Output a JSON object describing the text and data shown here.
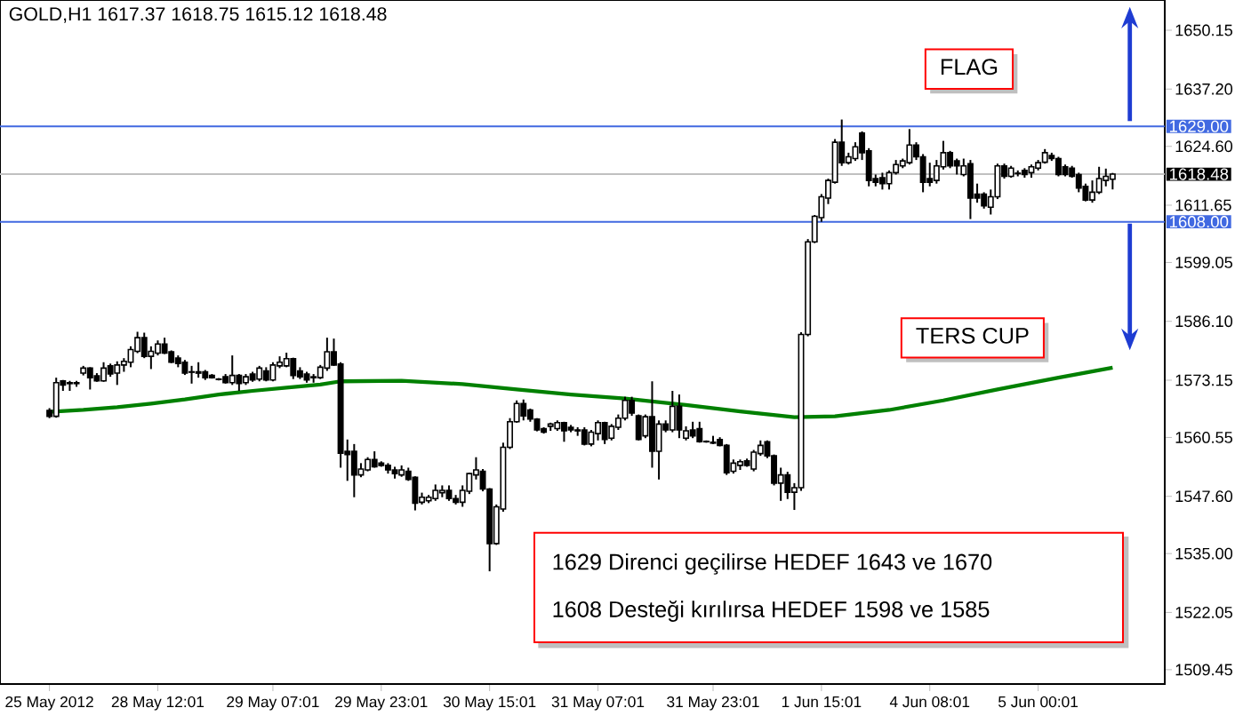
{
  "chart_data": {
    "type": "candlestick",
    "title": "GOLD,H1  1617.37 1618.75 1615.12 1618.48",
    "categories": [
      "25 May 2012",
      null,
      null,
      null,
      null,
      null,
      null,
      null,
      null,
      null,
      null,
      null,
      null,
      null,
      null,
      null,
      "28 May 12:01",
      null,
      null,
      null,
      null,
      null,
      null,
      null,
      null,
      null,
      null,
      null,
      null,
      null,
      null,
      null,
      null,
      "29 May 07:01",
      null,
      null,
      null,
      null,
      null,
      null,
      null,
      null,
      null,
      null,
      null,
      null,
      null,
      null,
      null,
      "29 May 23:01",
      null,
      null,
      null,
      null,
      null,
      null,
      null,
      null,
      null,
      null,
      null,
      null,
      null,
      null,
      null,
      "30 May 15:01",
      null,
      null,
      null,
      null,
      null,
      null,
      null,
      null,
      null,
      null,
      null,
      null,
      null,
      null,
      null,
      "31 May 07:01",
      null,
      null,
      null,
      null,
      null,
      null,
      null,
      null,
      null,
      null,
      null,
      null,
      null,
      null,
      null,
      null,
      "31 May 23:01",
      null,
      null,
      null,
      null,
      null,
      null,
      null,
      null,
      null,
      null,
      null,
      null,
      null,
      null,
      null,
      "1 Jun 15:01",
      null,
      null,
      null,
      null,
      null,
      null,
      null,
      null,
      null,
      null,
      null,
      null,
      null,
      null,
      null,
      "4 Jun 08:01",
      null,
      null,
      null,
      null,
      null,
      null,
      null,
      null,
      null,
      null,
      null,
      null,
      null,
      null,
      null,
      "5 Jun 00:01",
      null,
      null,
      null,
      null,
      null,
      null,
      null,
      null,
      null,
      null,
      null
    ],
    "ohlc": [
      [
        1566.5,
        1567.0,
        1564.8,
        1565.2
      ],
      [
        1565.2,
        1573.7,
        1564.9,
        1572.6
      ],
      [
        1573.0,
        1573.2,
        1570.8,
        1572.1
      ],
      [
        1572.6,
        1573.0,
        1570.8,
        1572.4
      ],
      [
        1572.4,
        1573.0,
        1571.7,
        1572.6
      ],
      [
        1574.7,
        1576.3,
        1574.2,
        1575.8
      ],
      [
        1575.8,
        1576.0,
        1571.1,
        1573.7
      ],
      [
        1574.1,
        1574.7,
        1572.8,
        1573.0
      ],
      [
        1573.0,
        1577.1,
        1572.8,
        1575.8
      ],
      [
        1576.3,
        1576.8,
        1573.9,
        1574.5
      ],
      [
        1574.7,
        1577.3,
        1572.1,
        1576.5
      ],
      [
        1576.5,
        1578.0,
        1575.0,
        1577.3
      ],
      [
        1577.1,
        1580.6,
        1576.0,
        1579.9
      ],
      [
        1579.5,
        1583.8,
        1579.1,
        1582.5
      ],
      [
        1582.5,
        1583.6,
        1578.0,
        1578.4
      ],
      [
        1578.4,
        1580.6,
        1575.6,
        1579.5
      ],
      [
        1579.1,
        1581.9,
        1578.6,
        1581.1
      ],
      [
        1581.1,
        1582.5,
        1578.9,
        1579.1
      ],
      [
        1579.4,
        1579.7,
        1576.9,
        1577.1
      ],
      [
        1578.0,
        1578.6,
        1576.0,
        1576.8
      ],
      [
        1577.1,
        1577.6,
        1574.3,
        1574.7
      ],
      [
        1575.0,
        1576.3,
        1572.4,
        1574.9
      ],
      [
        1575.0,
        1577.1,
        1573.7,
        1574.7
      ],
      [
        1575.0,
        1575.4,
        1573.2,
        1573.7
      ],
      [
        1574.2,
        1574.5,
        1573.5,
        1573.7
      ],
      [
        1573.4,
        1573.6,
        1573.1,
        1573.3
      ],
      [
        1573.9,
        1574.5,
        1572.4,
        1572.6
      ],
      [
        1572.6,
        1578.6,
        1572.1,
        1574.2
      ],
      [
        1574.2,
        1574.5,
        1570.8,
        1572.4
      ],
      [
        1572.6,
        1574.5,
        1572.1,
        1573.9
      ],
      [
        1574.5,
        1575.0,
        1572.8,
        1573.2
      ],
      [
        1573.4,
        1576.3,
        1572.9,
        1575.8
      ],
      [
        1575.2,
        1576.0,
        1572.9,
        1573.2
      ],
      [
        1573.2,
        1577.1,
        1572.9,
        1576.5
      ],
      [
        1576.3,
        1578.4,
        1575.8,
        1577.1
      ],
      [
        1576.3,
        1579.2,
        1576.0,
        1577.9
      ],
      [
        1577.9,
        1578.1,
        1573.4,
        1574.2
      ],
      [
        1575.2,
        1576.0,
        1573.4,
        1573.9
      ],
      [
        1574.5,
        1575.0,
        1572.6,
        1573.2
      ],
      [
        1573.9,
        1574.5,
        1572.6,
        1573.7
      ],
      [
        1573.7,
        1576.5,
        1573.4,
        1576.0
      ],
      [
        1575.8,
        1582.5,
        1575.2,
        1579.4
      ],
      [
        1579.4,
        1582.3,
        1576.3,
        1576.5
      ],
      [
        1576.7,
        1577.1,
        1553.9,
        1557.1
      ],
      [
        1557.5,
        1560.1,
        1551.0,
        1556.8
      ],
      [
        1557.5,
        1559.1,
        1547.4,
        1552.3
      ],
      [
        1552.3,
        1554.9,
        1551.8,
        1553.6
      ],
      [
        1553.4,
        1556.2,
        1553.1,
        1555.7
      ],
      [
        1555.7,
        1557.5,
        1553.9,
        1554.1
      ],
      [
        1554.9,
        1555.3,
        1554.1,
        1554.4
      ],
      [
        1554.4,
        1554.9,
        1552.6,
        1553.4
      ],
      [
        1553.4,
        1554.1,
        1551.5,
        1552.6
      ],
      [
        1552.3,
        1554.4,
        1551.9,
        1553.4
      ],
      [
        1553.1,
        1553.9,
        1551.0,
        1551.3
      ],
      [
        1551.8,
        1552.0,
        1544.5,
        1546.1
      ],
      [
        1546.3,
        1548.4,
        1545.8,
        1547.4
      ],
      [
        1546.6,
        1547.9,
        1546.1,
        1547.4
      ],
      [
        1547.1,
        1550.2,
        1546.6,
        1548.9
      ],
      [
        1548.4,
        1550.0,
        1547.4,
        1548.9
      ],
      [
        1548.9,
        1550.0,
        1546.6,
        1547.1
      ],
      [
        1547.1,
        1547.9,
        1545.8,
        1546.3
      ],
      [
        1546.3,
        1550.0,
        1545.3,
        1548.9
      ],
      [
        1548.7,
        1552.8,
        1548.1,
        1552.6
      ],
      [
        1552.3,
        1556.2,
        1551.3,
        1553.4
      ],
      [
        1553.1,
        1553.6,
        1548.7,
        1549.2
      ],
      [
        1549.2,
        1549.4,
        1531.1,
        1537.2
      ],
      [
        1537.2,
        1545.8,
        1536.9,
        1545.3
      ],
      [
        1544.8,
        1559.4,
        1544.2,
        1558.4
      ],
      [
        1558.4,
        1564.8,
        1558.0,
        1564.0
      ],
      [
        1564.0,
        1568.7,
        1563.8,
        1568.0
      ],
      [
        1568.0,
        1568.9,
        1564.3,
        1565.3
      ],
      [
        1566.6,
        1566.9,
        1564.0,
        1564.6
      ],
      [
        1564.6,
        1564.8,
        1561.9,
        1562.2
      ],
      [
        1562.5,
        1562.8,
        1561.4,
        1561.7
      ],
      [
        1563.0,
        1563.8,
        1562.0,
        1563.5
      ],
      [
        1562.5,
        1564.3,
        1562.0,
        1563.8
      ],
      [
        1563.8,
        1564.0,
        1559.6,
        1562.0
      ],
      [
        1562.8,
        1563.3,
        1561.7,
        1562.2
      ],
      [
        1562.2,
        1562.8,
        1560.9,
        1562.0
      ],
      [
        1562.2,
        1562.8,
        1558.8,
        1559.1
      ],
      [
        1559.1,
        1562.2,
        1558.6,
        1561.7
      ],
      [
        1561.4,
        1564.3,
        1559.9,
        1563.8
      ],
      [
        1563.8,
        1564.0,
        1559.1,
        1560.1
      ],
      [
        1560.4,
        1563.5,
        1559.9,
        1563.0
      ],
      [
        1562.8,
        1565.6,
        1562.2,
        1564.8
      ],
      [
        1564.8,
        1569.5,
        1564.3,
        1568.7
      ],
      [
        1568.7,
        1569.5,
        1565.3,
        1565.9
      ],
      [
        1565.3,
        1565.6,
        1559.9,
        1560.1
      ],
      [
        1560.9,
        1565.6,
        1560.4,
        1565.1
      ],
      [
        1565.1,
        1572.9,
        1553.9,
        1557.5
      ],
      [
        1557.5,
        1564.3,
        1551.3,
        1563.5
      ],
      [
        1563.5,
        1564.3,
        1561.7,
        1562.2
      ],
      [
        1562.2,
        1570.8,
        1561.7,
        1567.4
      ],
      [
        1567.4,
        1570.0,
        1560.4,
        1562.2
      ],
      [
        1560.4,
        1563.0,
        1559.9,
        1562.0
      ],
      [
        1562.2,
        1564.0,
        1560.4,
        1560.9
      ],
      [
        1562.5,
        1564.0,
        1559.4,
        1559.6
      ],
      [
        1559.7,
        1559.9,
        1559.4,
        1559.6
      ],
      [
        1559.5,
        1560.9,
        1559.1,
        1559.3
      ],
      [
        1560.1,
        1560.6,
        1558.6,
        1558.8
      ],
      [
        1558.8,
        1559.1,
        1552.3,
        1552.8
      ],
      [
        1553.1,
        1555.7,
        1552.6,
        1554.9
      ],
      [
        1554.4,
        1555.7,
        1553.4,
        1555.2
      ],
      [
        1555.4,
        1555.9,
        1554.1,
        1554.4
      ],
      [
        1553.6,
        1557.8,
        1553.1,
        1557.3
      ],
      [
        1557.0,
        1559.9,
        1556.5,
        1558.8
      ],
      [
        1559.6,
        1559.9,
        1556.0,
        1556.5
      ],
      [
        1556.5,
        1556.8,
        1550.0,
        1550.5
      ],
      [
        1550.5,
        1553.9,
        1546.6,
        1552.3
      ],
      [
        1552.3,
        1553.0,
        1547.0,
        1548.5
      ],
      [
        1548.5,
        1550.5,
        1544.6,
        1549.5
      ],
      [
        1549.5,
        1583.7,
        1548.8,
        1583.2
      ],
      [
        1583.2,
        1604.2,
        1582.8,
        1603.6
      ],
      [
        1603.6,
        1609.5,
        1603.3,
        1609.2
      ],
      [
        1608.9,
        1614.1,
        1608.0,
        1613.5
      ],
      [
        1613.2,
        1617.5,
        1611.9,
        1617.1
      ],
      [
        1616.7,
        1626.2,
        1616.4,
        1625.5
      ],
      [
        1625.5,
        1630.5,
        1620.3,
        1621.0
      ],
      [
        1621.0,
        1623.2,
        1620.6,
        1622.3
      ],
      [
        1621.9,
        1625.5,
        1621.4,
        1624.5
      ],
      [
        1627.5,
        1627.9,
        1621.6,
        1623.2
      ],
      [
        1623.6,
        1624.2,
        1615.8,
        1617.1
      ],
      [
        1617.5,
        1618.4,
        1615.8,
        1616.7
      ],
      [
        1617.7,
        1618.8,
        1615.1,
        1616.4
      ],
      [
        1616.4,
        1619.3,
        1615.1,
        1618.8
      ],
      [
        1618.8,
        1621.6,
        1618.4,
        1620.6
      ],
      [
        1620.3,
        1621.9,
        1619.8,
        1621.4
      ],
      [
        1621.0,
        1628.4,
        1620.6,
        1624.9
      ],
      [
        1624.9,
        1625.5,
        1621.6,
        1622.3
      ],
      [
        1622.3,
        1622.9,
        1614.5,
        1616.7
      ],
      [
        1617.5,
        1621.0,
        1615.8,
        1616.7
      ],
      [
        1617.1,
        1621.6,
        1616.4,
        1620.3
      ],
      [
        1620.1,
        1625.8,
        1619.5,
        1623.2
      ],
      [
        1623.2,
        1623.6,
        1619.8,
        1620.3
      ],
      [
        1621.4,
        1621.9,
        1618.4,
        1620.3
      ],
      [
        1618.4,
        1621.9,
        1618.0,
        1620.3
      ],
      [
        1620.8,
        1621.6,
        1608.6,
        1613.2
      ],
      [
        1614.1,
        1616.4,
        1612.2,
        1613.2
      ],
      [
        1614.1,
        1614.5,
        1610.9,
        1611.5
      ],
      [
        1611.2,
        1615.1,
        1609.6,
        1613.5
      ],
      [
        1613.5,
        1620.8,
        1613.0,
        1620.3
      ],
      [
        1620.3,
        1620.8,
        1617.5,
        1618.0
      ],
      [
        1618.0,
        1620.3,
        1617.7,
        1619.8
      ],
      [
        1618.7,
        1619.3,
        1618.0,
        1618.6
      ],
      [
        1619.3,
        1619.8,
        1617.7,
        1618.4
      ],
      [
        1618.8,
        1620.6,
        1617.7,
        1620.1
      ],
      [
        1619.8,
        1621.6,
        1619.3,
        1621.0
      ],
      [
        1621.1,
        1624.0,
        1620.8,
        1623.2
      ],
      [
        1622.6,
        1623.2,
        1621.4,
        1621.9
      ],
      [
        1621.9,
        1622.3,
        1618.0,
        1618.4
      ],
      [
        1620.1,
        1620.6,
        1618.0,
        1618.4
      ],
      [
        1619.8,
        1620.3,
        1617.7,
        1618.0
      ],
      [
        1618.4,
        1618.8,
        1614.5,
        1615.4
      ],
      [
        1615.8,
        1616.4,
        1612.5,
        1612.8
      ],
      [
        1612.8,
        1617.1,
        1612.2,
        1614.5
      ],
      [
        1614.5,
        1620.1,
        1614.1,
        1617.5
      ],
      [
        1617.1,
        1619.7,
        1615.8,
        1618.0
      ],
      [
        1617.37,
        1618.75,
        1615.12,
        1618.48
      ]
    ],
    "series": [
      {
        "type": "line",
        "color": "#008000",
        "values": [
          1566.2,
          null,
          null,
          null,
          null,
          1566.6,
          null,
          null,
          null,
          null,
          1567.2,
          null,
          null,
          null,
          null,
          1568.0,
          null,
          null,
          null,
          null,
          1568.9,
          null,
          null,
          null,
          null,
          1570.0,
          null,
          null,
          null,
          null,
          1570.8,
          null,
          null,
          null,
          null,
          1571.5,
          null,
          null,
          null,
          null,
          1572.2,
          null,
          null,
          1572.9,
          null,
          null,
          null,
          null,
          null,
          null,
          null,
          null,
          1573.0,
          null,
          null,
          null,
          null,
          null,
          null,
          null,
          null,
          1572.3,
          null,
          null,
          null,
          null,
          null,
          null,
          null,
          1571.1,
          null,
          null,
          null,
          null,
          null,
          null,
          null,
          1570.0,
          null,
          null,
          null,
          null,
          null,
          null,
          null,
          1569.1,
          null,
          null,
          null,
          null,
          null,
          null,
          null,
          null,
          1567.7,
          null,
          null,
          null,
          null,
          null,
          null,
          null,
          1566.3,
          null,
          null,
          null,
          null,
          null,
          null,
          null,
          1565.0,
          null,
          null,
          null,
          null,
          null,
          1565.2,
          null,
          null,
          null,
          null,
          null,
          null,
          null,
          1566.6,
          null,
          null,
          null,
          null,
          null,
          null,
          null,
          1568.7,
          null,
          null,
          null,
          null,
          null,
          null,
          null,
          1571.1,
          null,
          null,
          null,
          null,
          null,
          null,
          null,
          null,
          1573.7,
          null,
          null,
          null,
          null,
          null,
          null,
          null,
          1575.9
        ]
      }
    ],
    "ylim": [
      1506.3,
      1656.8
    ],
    "yticks": [
      {
        "value": 1509.45,
        "label": "1509.45"
      },
      {
        "value": 1522.05,
        "label": "1522.05"
      },
      {
        "value": 1535.0,
        "label": "1535.00"
      },
      {
        "value": 1547.6,
        "label": "1547.60"
      },
      {
        "value": 1560.55,
        "label": "1560.55"
      },
      {
        "value": 1573.15,
        "label": "1573.15"
      },
      {
        "value": 1586.1,
        "label": "1586.10"
      },
      {
        "value": 1599.05,
        "label": "1599.05"
      },
      {
        "value": 1611.65,
        "label": "1611.65"
      },
      {
        "value": 1624.6,
        "label": "1624.60"
      },
      {
        "value": 1637.2,
        "label": "1637.20"
      },
      {
        "value": 1650.15,
        "label": "1650.15"
      }
    ],
    "ref_lines": [
      {
        "axis": "y",
        "value": 1629.0,
        "label": "1629.00",
        "color": "#4169e1"
      },
      {
        "axis": "y",
        "value": 1618.48,
        "label": "1618.48",
        "color": "#c0c0c0"
      },
      {
        "axis": "y",
        "value": 1608.0,
        "label": "1608.00",
        "color": "#4169e1"
      }
    ],
    "annotations": [
      "FLAG",
      "TERS CUP",
      "1629 Direnci geçilirse HEDEF 1643 ve 1670",
      "1608 Desteği kırılırsa HEDEF 1598 ve 1585"
    ]
  }
}
